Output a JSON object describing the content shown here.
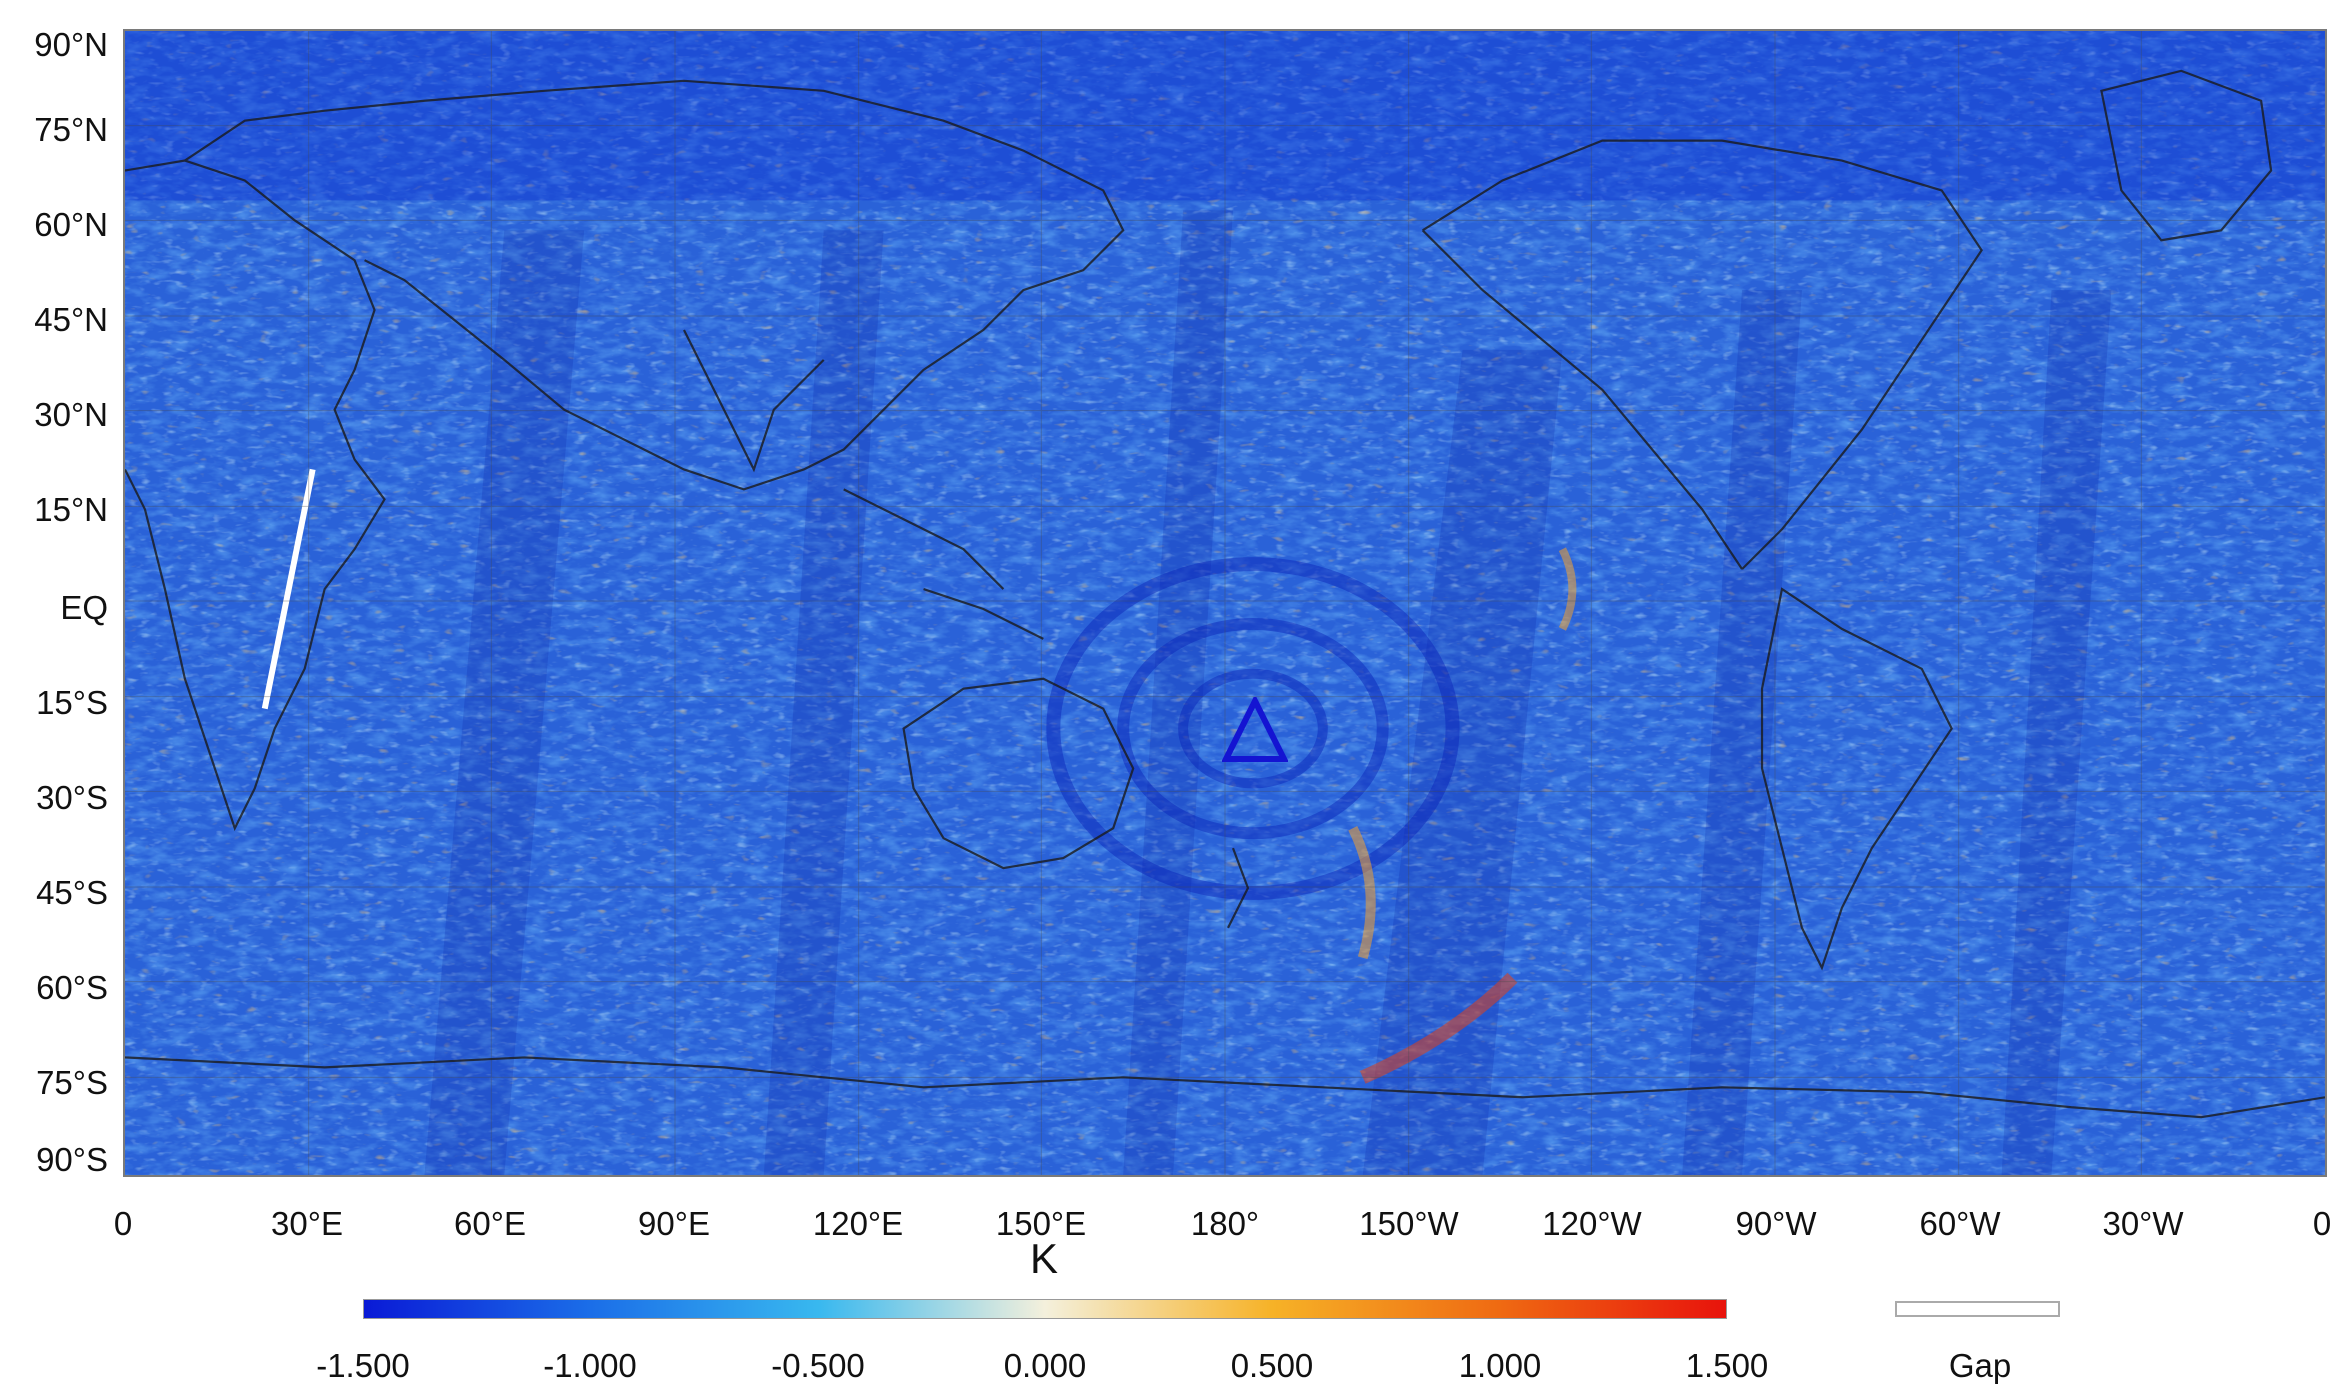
{
  "lat_labels": [
    "90°N",
    "75°N",
    "60°N",
    "45°N",
    "30°N",
    "15°N",
    "EQ",
    "15°S",
    "30°S",
    "45°S",
    "60°S",
    "75°S",
    "90°S"
  ],
  "lon_labels": [
    "0",
    "30°E",
    "60°E",
    "90°E",
    "120°E",
    "150°E",
    "180°",
    "150°W",
    "120°W",
    "90°W",
    "60°W",
    "30°W",
    "0"
  ],
  "units": "K",
  "colorbar": {
    "ticks": [
      "-1.500",
      "-1.000",
      "-0.500",
      "0.000",
      "0.500",
      "1.000",
      "1.500"
    ],
    "colors": [
      "#0a1ad6",
      "#1b6ee8",
      "#38b8ef",
      "#f4f0dc",
      "#f6b227",
      "#ef6a12",
      "#e8130c"
    ],
    "min": -1.5,
    "max": 1.5
  },
  "legend": {
    "gap_label": "Gap",
    "gap_color": "#ffffff"
  },
  "map": {
    "background_color": "#2a62d8",
    "marker": {
      "shape": "triangle",
      "color": "#1414d2",
      "lon": 182,
      "lat": -22
    }
  }
}
